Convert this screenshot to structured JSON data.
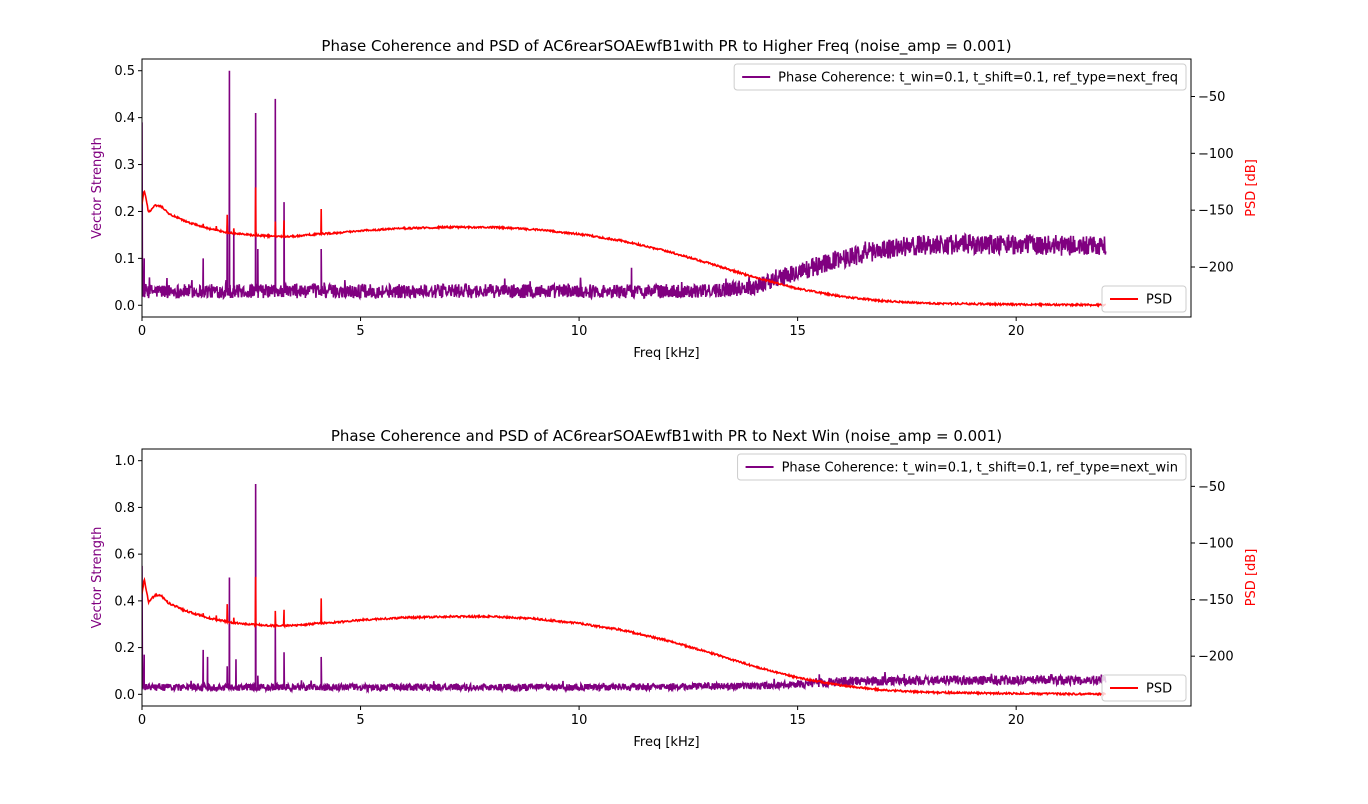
{
  "colors": {
    "coherence": "#800080",
    "psd": "#ff0000",
    "axis": "#000000"
  },
  "chart_data": [
    {
      "type": "line",
      "title": "Phase Coherence and PSD of AC6rearSOAEwfB1with PR to Higher Freq (noise_amp = 0.001)",
      "xlabel": "Freq [kHz]",
      "ylabel_left": "Vector Strength",
      "ylabel_right": "PSD [dB]",
      "xlim": [
        0,
        24
      ],
      "ylim_left": [
        -0.025,
        0.525
      ],
      "ylim_right": [
        -244,
        -17
      ],
      "xticks": [
        "0",
        "5",
        "10",
        "15",
        "20"
      ],
      "yticks_left": [
        "0.0",
        "0.1",
        "0.2",
        "0.3",
        "0.4",
        "0.5"
      ],
      "yticks_right": [
        "−50",
        "−100",
        "−150",
        "−200"
      ],
      "legend_left": "Phase Coherence: t_win=0.1, t_shift=0.1, ref_type=next_freq",
      "legend_left_position": "top-right",
      "legend_right": "PSD",
      "legend_right_position": "bottom-right",
      "grid": false,
      "coherence": {
        "base": [
          [
            0,
            0.03
          ],
          [
            5,
            0.03
          ],
          [
            10,
            0.03
          ],
          [
            13,
            0.03
          ],
          [
            14,
            0.04
          ],
          [
            15,
            0.07
          ],
          [
            16,
            0.1
          ],
          [
            17,
            0.12
          ],
          [
            18,
            0.13
          ],
          [
            20,
            0.13
          ],
          [
            22.05,
            0.125
          ]
        ],
        "noise_amp": [
          [
            0,
            0.015
          ],
          [
            13,
            0.015
          ],
          [
            15,
            0.02
          ],
          [
            17,
            0.022
          ],
          [
            22.05,
            0.022
          ]
        ],
        "peaks": [
          [
            0,
            0.39
          ],
          [
            0.05,
            0.1
          ],
          [
            1.4,
            0.1
          ],
          [
            1.95,
            0.17
          ],
          [
            2.0,
            0.5
          ],
          [
            2.1,
            0.16
          ],
          [
            2.6,
            0.41
          ],
          [
            2.65,
            0.12
          ],
          [
            3.05,
            0.44
          ],
          [
            3.25,
            0.22
          ],
          [
            4.1,
            0.12
          ],
          [
            11.2,
            0.08
          ]
        ]
      },
      "psd": {
        "curve": [
          [
            0,
            -145
          ],
          [
            0.05,
            -132
          ],
          [
            0.15,
            -152
          ],
          [
            0.3,
            -146
          ],
          [
            0.45,
            -147
          ],
          [
            0.6,
            -153
          ],
          [
            1.0,
            -160
          ],
          [
            1.5,
            -166
          ],
          [
            2.0,
            -170
          ],
          [
            2.5,
            -172
          ],
          [
            3.0,
            -173
          ],
          [
            3.5,
            -173
          ],
          [
            4.0,
            -171
          ],
          [
            4.5,
            -170
          ],
          [
            5,
            -168
          ],
          [
            6,
            -166
          ],
          [
            7,
            -165
          ],
          [
            8,
            -165
          ],
          [
            9,
            -167
          ],
          [
            10,
            -171
          ],
          [
            11,
            -177
          ],
          [
            12,
            -186
          ],
          [
            13,
            -197
          ],
          [
            14,
            -209
          ],
          [
            15,
            -219
          ],
          [
            16,
            -226
          ],
          [
            17,
            -230
          ],
          [
            18,
            -232
          ],
          [
            19,
            -232.5
          ],
          [
            20,
            -233
          ],
          [
            22.05,
            -233.5
          ]
        ],
        "peaks": [
          [
            1.4,
            -162
          ],
          [
            1.7,
            -164
          ],
          [
            1.95,
            -154
          ],
          [
            2.1,
            -166
          ],
          [
            2.6,
            -130
          ],
          [
            3.05,
            -160
          ],
          [
            3.25,
            -159
          ],
          [
            4.1,
            -149
          ]
        ]
      }
    },
    {
      "type": "line",
      "title": "Phase Coherence and PSD of AC6rearSOAEwfB1with PR to Next Win (noise_amp = 0.001)",
      "xlabel": "Freq [kHz]",
      "ylabel_left": "Vector Strength",
      "ylabel_right": "PSD [dB]",
      "xlim": [
        0,
        24
      ],
      "ylim_left": [
        -0.05,
        1.05
      ],
      "ylim_right": [
        -244,
        -17
      ],
      "xticks": [
        "0",
        "5",
        "10",
        "15",
        "20"
      ],
      "yticks_left": [
        "0.0",
        "0.2",
        "0.4",
        "0.6",
        "0.8",
        "1.0"
      ],
      "yticks_right": [
        "−50",
        "−100",
        "−150",
        "−200"
      ],
      "legend_left": "Phase Coherence: t_win=0.1, t_shift=0.1, ref_type=next_win",
      "legend_left_position": "top-right",
      "legend_right": "PSD",
      "legend_right_position": "bottom-right",
      "grid": false,
      "coherence": {
        "base": [
          [
            0,
            0.03
          ],
          [
            5,
            0.03
          ],
          [
            10,
            0.03
          ],
          [
            14,
            0.035
          ],
          [
            15,
            0.045
          ],
          [
            16,
            0.055
          ],
          [
            18,
            0.06
          ],
          [
            22.05,
            0.06
          ]
        ],
        "noise_amp": [
          [
            0,
            0.015
          ],
          [
            14,
            0.015
          ],
          [
            16,
            0.02
          ],
          [
            22.05,
            0.02
          ]
        ],
        "peaks": [
          [
            0,
            0.55
          ],
          [
            0.05,
            0.17
          ],
          [
            1.4,
            0.19
          ],
          [
            1.5,
            0.16
          ],
          [
            1.95,
            0.12
          ],
          [
            2.0,
            0.5
          ],
          [
            2.15,
            0.15
          ],
          [
            2.6,
            0.9
          ],
          [
            2.65,
            0.08
          ],
          [
            3.05,
            0.3
          ],
          [
            3.25,
            0.18
          ],
          [
            4.1,
            0.16
          ]
        ]
      },
      "psd": {
        "curve": [
          [
            0,
            -145
          ],
          [
            0.05,
            -132
          ],
          [
            0.15,
            -152
          ],
          [
            0.3,
            -146
          ],
          [
            0.45,
            -147
          ],
          [
            0.6,
            -153
          ],
          [
            1.0,
            -160
          ],
          [
            1.5,
            -166
          ],
          [
            2.0,
            -170
          ],
          [
            2.5,
            -172
          ],
          [
            3.0,
            -173
          ],
          [
            3.5,
            -173
          ],
          [
            4.0,
            -171
          ],
          [
            4.5,
            -170
          ],
          [
            5,
            -168
          ],
          [
            6,
            -166
          ],
          [
            7,
            -165
          ],
          [
            8,
            -165
          ],
          [
            9,
            -167
          ],
          [
            10,
            -171
          ],
          [
            11,
            -177
          ],
          [
            12,
            -186
          ],
          [
            13,
            -197
          ],
          [
            14,
            -209
          ],
          [
            15,
            -219
          ],
          [
            16,
            -226
          ],
          [
            17,
            -230
          ],
          [
            18,
            -232
          ],
          [
            19,
            -232.5
          ],
          [
            20,
            -233
          ],
          [
            22.05,
            -233.5
          ]
        ],
        "peaks": [
          [
            1.4,
            -162
          ],
          [
            1.7,
            -164
          ],
          [
            1.95,
            -154
          ],
          [
            2.1,
            -166
          ],
          [
            2.6,
            -130
          ],
          [
            3.05,
            -160
          ],
          [
            3.25,
            -159
          ],
          [
            4.1,
            -149
          ]
        ]
      }
    }
  ]
}
